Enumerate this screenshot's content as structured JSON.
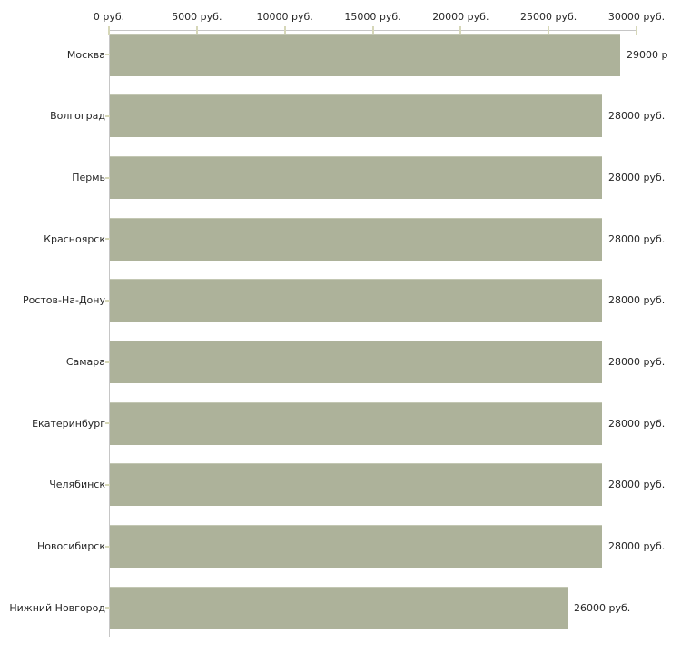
{
  "colors": {
    "bar": "#adb29a",
    "bar_edge": "#c3c7b3",
    "axis": "#c6c6c6",
    "tick": "#d6d7b8",
    "text": "#262626",
    "background": "#ffffff"
  },
  "chart_data": {
    "type": "bar",
    "orientation": "horizontal",
    "title": "",
    "xlabel": "",
    "ylabel": "",
    "unit": "руб.",
    "grid": false,
    "legend": false,
    "xlim": [
      0,
      30000
    ],
    "x_ticks": [
      0,
      5000,
      10000,
      15000,
      20000,
      25000,
      30000
    ],
    "x_tick_labels": [
      "0 руб.",
      "5000 руб.",
      "10000 руб.",
      "15000 руб.",
      "20000 руб.",
      "25000 руб.",
      "30000 руб."
    ],
    "categories": [
      "Москва",
      "Волгоград",
      "Пермь",
      "Красноярск",
      "Ростов-На-Дону",
      "Самара",
      "Екатеринбург",
      "Челябинск",
      "Новосибирск",
      "Нижний Новгород"
    ],
    "values": [
      29000,
      28000,
      28000,
      28000,
      28000,
      28000,
      28000,
      28000,
      28000,
      26000
    ],
    "value_labels": [
      "29000 р",
      "28000 руб.",
      "28000 руб.",
      "28000 руб.",
      "28000 руб.",
      "28000 руб.",
      "28000 руб.",
      "28000 руб.",
      "28000 руб.",
      "26000 руб."
    ]
  }
}
